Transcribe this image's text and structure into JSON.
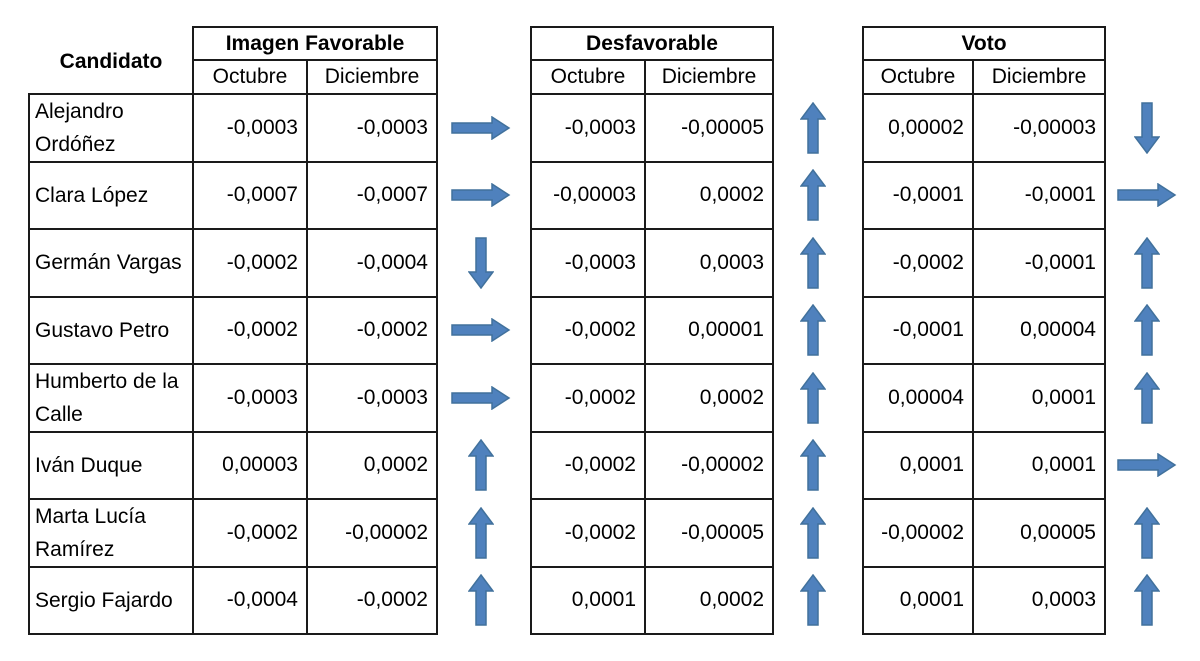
{
  "header_label": "Candidato",
  "groups": [
    {
      "title": "Imagen Favorable",
      "sub": [
        "Octubre",
        "Diciembre"
      ]
    },
    {
      "title": "Desfavorable",
      "sub": [
        "Octubre",
        "Diciembre"
      ]
    },
    {
      "title": "Voto",
      "sub": [
        "Octubre",
        "Diciembre"
      ]
    }
  ],
  "rows": [
    {
      "name": "Alejandro Ordóñez",
      "values": [
        [
          "-0,0003",
          "-0,0003"
        ],
        [
          "-0,0003",
          "-0,00005"
        ],
        [
          "0,00002",
          "-0,00003"
        ]
      ],
      "trends": [
        "right",
        "up",
        "down"
      ]
    },
    {
      "name": "Clara López",
      "values": [
        [
          "-0,0007",
          "-0,0007"
        ],
        [
          "-0,00003",
          "0,0002"
        ],
        [
          "-0,0001",
          "-0,0001"
        ]
      ],
      "trends": [
        "right",
        "up",
        "right"
      ]
    },
    {
      "name": "Germán Vargas",
      "values": [
        [
          "-0,0002",
          "-0,0004"
        ],
        [
          "-0,0003",
          "0,0003"
        ],
        [
          "-0,0002",
          "-0,0001"
        ]
      ],
      "trends": [
        "down",
        "up",
        "up"
      ]
    },
    {
      "name": "Gustavo Petro",
      "values": [
        [
          "-0,0002",
          "-0,0002"
        ],
        [
          "-0,0002",
          "0,00001"
        ],
        [
          "-0,0001",
          "0,00004"
        ]
      ],
      "trends": [
        "right",
        "up",
        "up"
      ]
    },
    {
      "name": "Humberto de la Calle",
      "values": [
        [
          "-0,0003",
          "-0,0003"
        ],
        [
          "-0,0002",
          "0,0002"
        ],
        [
          "0,00004",
          "0,0001"
        ]
      ],
      "trends": [
        "right",
        "up",
        "up"
      ]
    },
    {
      "name": "Iván Duque",
      "values": [
        [
          "0,00003",
          "0,0002"
        ],
        [
          "-0,0002",
          "-0,00002"
        ],
        [
          "0,0001",
          "0,0001"
        ]
      ],
      "trends": [
        "up",
        "up",
        "right"
      ]
    },
    {
      "name": "Marta Lucía Ramírez",
      "values": [
        [
          "-0,0002",
          "-0,00002"
        ],
        [
          "-0,0002",
          "-0,00005"
        ],
        [
          "-0,00002",
          "0,00005"
        ]
      ],
      "trends": [
        "up",
        "up",
        "up"
      ]
    },
    {
      "name": "Sergio Fajardo",
      "values": [
        [
          "-0,0004",
          "-0,0002"
        ],
        [
          "0,0001",
          "0,0002"
        ],
        [
          "0,0001",
          "0,0003"
        ]
      ],
      "trends": [
        "up",
        "up",
        "up"
      ]
    }
  ],
  "colors": {
    "arrow_fill": "#4f81bd",
    "arrow_stroke": "#41719c",
    "border": "#1a1a1a"
  }
}
